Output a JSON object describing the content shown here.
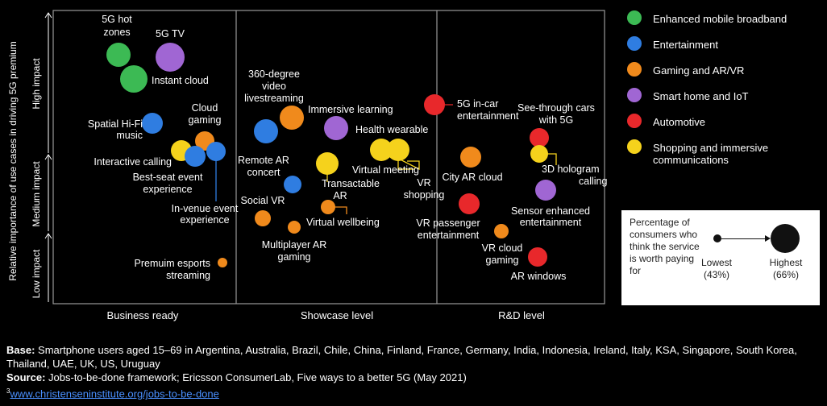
{
  "chart_data": {
    "type": "scatter",
    "ylabel": "Relative importance of use cases in driving 5G premium",
    "y_levels": [
      "Low impact",
      "Medium impact",
      "High impact"
    ],
    "columns": [
      "Business ready",
      "Showcase level",
      "R&D level"
    ],
    "series": [
      {
        "name": "Enhanced mobile broadband",
        "color": "#3cba54"
      },
      {
        "name": "Entertainment",
        "color": "#2f7de1"
      },
      {
        "name": "Gaming and AR/VR",
        "color": "#f08a1c"
      },
      {
        "name": "Smart home and IoT",
        "color": "#a066d3"
      },
      {
        "name": "Automotive",
        "color": "#e8282b"
      },
      {
        "name": "Shopping and immersive communications",
        "color": "#f5d21c"
      }
    ],
    "size_legend": {
      "description": "Percentage of consumers who think the service is worth paying for",
      "low_label": "Lowest",
      "low_value": "(43%)",
      "high_label": "Highest",
      "high_value": "(66%)"
    },
    "points": [
      {
        "label": "5G hot zones",
        "series": 0
      },
      {
        "label": "5G TV",
        "series": 3
      },
      {
        "label": "Instant cloud",
        "series": 0
      },
      {
        "label": "Spatial Hi-Fi music",
        "series": 1
      },
      {
        "label": "Cloud gaming",
        "series": 2
      },
      {
        "label": "Interactive calling",
        "series": 5
      },
      {
        "label": "Best-seat event experience",
        "series": 1
      },
      {
        "label": "In-venue event experience",
        "series": 1
      },
      {
        "label": "Premuim esports streaming",
        "series": 2
      },
      {
        "label": "360-degree video livestreaming",
        "series": 1
      },
      {
        "label": "Immersive learning",
        "series": 2
      },
      {
        "label": "Health wearable",
        "series": 3
      },
      {
        "label": "Remote AR concert",
        "series": 1
      },
      {
        "label": "Transactable AR",
        "series": 5
      },
      {
        "label": "Virtual meeting",
        "series": 5
      },
      {
        "label": "VR shopping",
        "series": 5
      },
      {
        "label": "Social VR",
        "series": 2
      },
      {
        "label": "Virtual wellbeing",
        "series": 2
      },
      {
        "label": "Multiplayer AR gaming",
        "series": 2
      },
      {
        "label": "5G in-car entertainment",
        "series": 4
      },
      {
        "label": "City AR cloud",
        "series": 2
      },
      {
        "label": "VR passenger entertainment",
        "series": 4
      },
      {
        "label": "VR cloud gaming",
        "series": 2
      },
      {
        "label": "See-through cars with 5G",
        "series": 4
      },
      {
        "label": "3D hologram calling",
        "series": 5
      },
      {
        "label": "Sensor enhanced entertainment",
        "series": 3
      },
      {
        "label": "AR windows",
        "series": 4
      }
    ]
  },
  "footer": {
    "base_label": "Base:",
    "base_text": "Smartphone users aged 15–69 in Argentina, Australia, Brazil, Chile, China, Finland, France, Germany, India, Indonesia, Ireland, Italy, KSA, Singapore, South Korea, Thailand, UAE, UK, US, Uruguay",
    "source_label": "Source:",
    "source_text": "Jobs-to-be-done framework; Ericsson ConsumerLab, Five ways to a better 5G (May 2021)",
    "footnote_marker": "3",
    "link_text": "www.christenseninstitute.org/jobs-to-be-done"
  }
}
